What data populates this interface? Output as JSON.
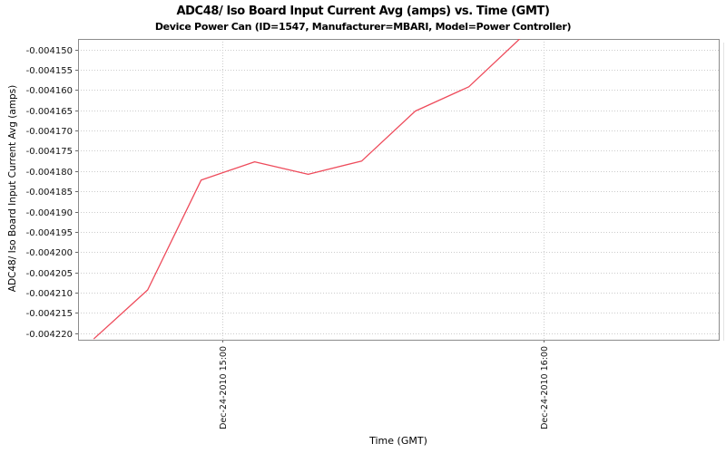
{
  "chart_data": {
    "type": "line",
    "title": "ADC48/ Iso Board Input Current Avg (amps) vs. Time (GMT)",
    "subtitle": "Device Power Can (ID=1547, Manufacturer=MBARI, Model=Power Controller)",
    "xlabel": "Time (GMT)",
    "ylabel": "ADC48/ Iso Board Input Current Avg (amps)",
    "grid": true,
    "legend_position": "none",
    "background_color": "#ffffff",
    "gridline_color": "#cccccc",
    "border_color": "#8c8c8c",
    "line_color": "#ee4b5b",
    "y_ticks": [
      "-0.004150",
      "-0.004155",
      "-0.004160",
      "-0.004165",
      "-0.004170",
      "-0.004175",
      "-0.004180",
      "-0.004185",
      "-0.004190",
      "-0.004195",
      "-0.004200",
      "-0.004205",
      "-0.004210",
      "-0.004215",
      "-0.004220"
    ],
    "y_range": [
      -0.0042216,
      -0.0041474
    ],
    "x_ticks": [
      {
        "label": "Dec-24-2010 15:00",
        "minutes": 900
      },
      {
        "label": "Dec-24-2010 16:00",
        "minutes": 960
      }
    ],
    "x_range_minutes": [
      873.0,
      992.7
    ],
    "series": [
      {
        "name": "ADC48/ Iso Board Input Current Avg (amps)",
        "points": [
          {
            "time": "Dec-24-2010 14:36",
            "minutes": 876,
            "value": -0.0042213
          },
          {
            "time": "Dec-24-2010 14:46",
            "minutes": 886,
            "value": -0.0042093
          },
          {
            "time": "Dec-24-2010 14:56",
            "minutes": 896,
            "value": -0.0041822
          },
          {
            "time": "Dec-24-2010 15:06",
            "minutes": 906,
            "value": -0.0041777
          },
          {
            "time": "Dec-24-2010 15:16",
            "minutes": 916,
            "value": -0.0041808
          },
          {
            "time": "Dec-24-2010 15:26",
            "minutes": 926,
            "value": -0.0041775
          },
          {
            "time": "Dec-24-2010 15:36",
            "minutes": 936,
            "value": -0.0041652
          },
          {
            "time": "Dec-24-2010 15:46",
            "minutes": 946,
            "value": -0.0041592
          },
          {
            "time": "Dec-24-2010 15:56",
            "minutes": 956,
            "value": -0.0041468
          }
        ]
      }
    ]
  }
}
